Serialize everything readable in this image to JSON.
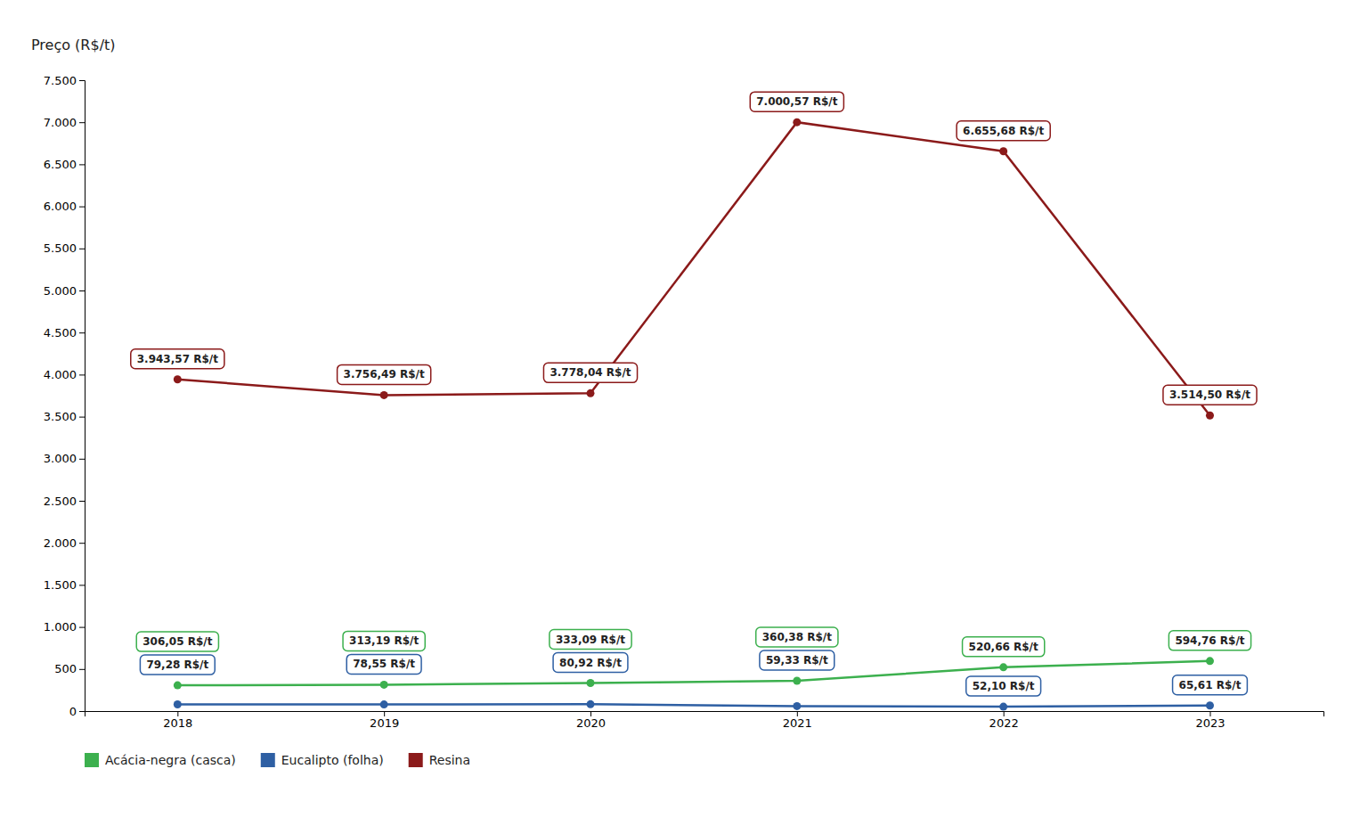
{
  "chart_data": {
    "type": "line",
    "y_label": "Preço (R$/t)",
    "x": [
      2018,
      2019,
      2020,
      2021,
      2022,
      2023
    ],
    "xlim": [
      2017.55,
      2023.55
    ],
    "xticks": [
      2018,
      2019,
      2020,
      2021,
      2022,
      2023
    ],
    "ylim": [
      0,
      7500
    ],
    "yticks": [
      0,
      500,
      {
        "value": 1000,
        "label": "1.000"
      },
      {
        "value": 1500,
        "label": "1.500"
      },
      {
        "value": 2000,
        "label": "2.000"
      },
      {
        "value": 2500,
        "label": "2.500"
      },
      {
        "value": 3000,
        "label": "3.000"
      },
      {
        "value": 3500,
        "label": "3.500"
      },
      {
        "value": 4000,
        "label": "4.000"
      },
      {
        "value": 4500,
        "label": "4.500"
      },
      {
        "value": 5000,
        "label": "5.000"
      },
      {
        "value": 5500,
        "label": "5.500"
      },
      {
        "value": 6000,
        "label": "6.000"
      },
      {
        "value": 6500,
        "label": "6.500"
      },
      {
        "value": 7000,
        "label": "7.000"
      },
      {
        "value": 7500,
        "label": "7.500"
      }
    ],
    "grid": false,
    "legend": "bottom",
    "data_labels": true,
    "marker": "circle",
    "line_style": "solid",
    "series": [
      {
        "name": "Acácia-negra (casca)",
        "color": "#3cb04e",
        "values": [
          306.05,
          313.19,
          333.09,
          360.38,
          520.66,
          594.76
        ],
        "value_labels": [
          "306,05 R$/t",
          "313,19 R$/t",
          "333,09 R$/t",
          "360,38 R$/t",
          "520,66 R$/t",
          "594,76 R$/t"
        ]
      },
      {
        "name": "Eucalipto (folha)",
        "color": "#2e5fa3",
        "values": [
          79.28,
          78.55,
          80.92,
          59.33,
          52.1,
          65.61
        ],
        "value_labels": [
          "79,28 R$/t",
          "78,55 R$/t",
          "80,92 R$/t",
          "59,33 R$/t",
          "52,10 R$/t",
          "65,61 R$/t"
        ]
      },
      {
        "name": "Resina",
        "color": "#8b1a1a",
        "values": [
          3943.57,
          3756.49,
          3778.04,
          7000.57,
          6655.68,
          3514.5
        ],
        "value_labels": [
          "3.943,57 R$/t",
          "3.756,49 R$/t",
          "3.778,04 R$/t",
          "7.000,57 R$/t",
          "6.655,68 R$/t",
          "3.514,50 R$/t"
        ]
      }
    ]
  }
}
